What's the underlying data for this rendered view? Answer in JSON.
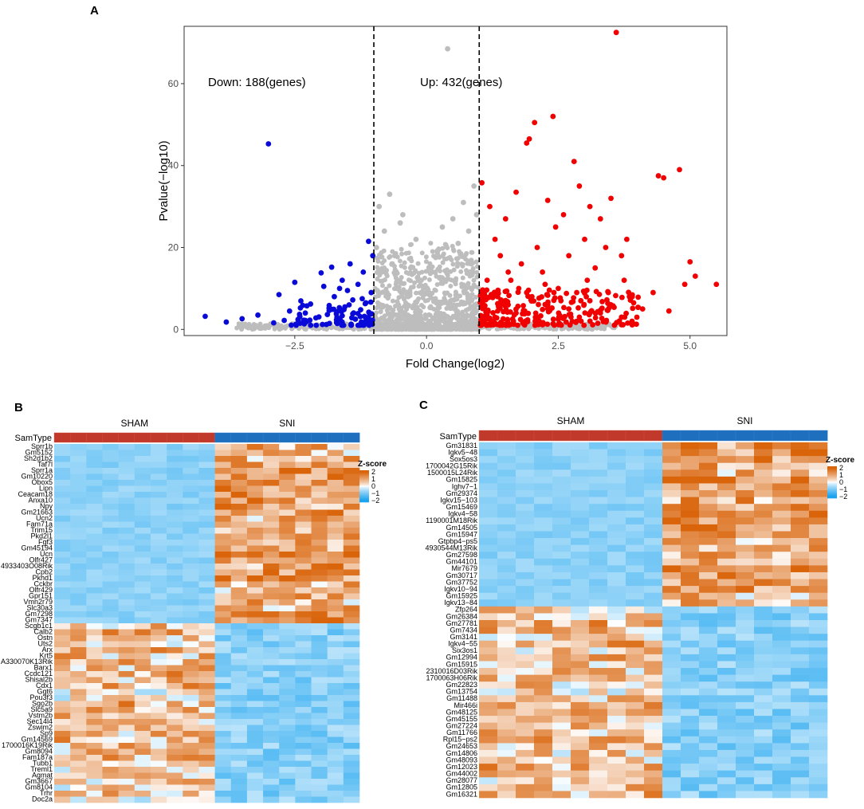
{
  "colors": {
    "up": "#f00000",
    "down": "#0a0ad8",
    "ns": "#bdbdbd",
    "sham": "#c0392b",
    "sni": "#1f6fbf",
    "low": "#1aa3ef",
    "mid": "#ffffff",
    "high": "#d9640a"
  },
  "chart_data": [
    {
      "panel": "A",
      "type": "scatter",
      "title": "",
      "xlabel": "Fold Change(log2)",
      "ylabel": "Pvalue(−log10)",
      "xlim": [
        -4.6,
        5.7
      ],
      "ylim": [
        -1.5,
        74
      ],
      "xticks": [
        -2.5,
        0.0,
        2.5,
        5.0
      ],
      "xtick_labels": [
        "−2.5",
        "0.0",
        "2.5",
        "5.0"
      ],
      "yticks": [
        0,
        20,
        40,
        60
      ],
      "ytick_labels": [
        "0",
        "20",
        "40",
        "60"
      ],
      "thresholds": [
        -1,
        1
      ],
      "annotations": {
        "down": "Down: 188(genes)",
        "up": "Up: 432(genes)"
      },
      "down_points": [
        [
          -4.2,
          3.2
        ],
        [
          -3.8,
          1.8
        ],
        [
          -3.2,
          3.5
        ],
        [
          -3.0,
          45.3
        ],
        [
          -2.8,
          8.5
        ],
        [
          -2.5,
          11.5
        ],
        [
          -2.3,
          4.0
        ],
        [
          -2.2,
          6.2
        ],
        [
          -2.0,
          13.8
        ],
        [
          -1.95,
          10.5
        ],
        [
          -1.8,
          15.2
        ],
        [
          -1.75,
          8.0
        ],
        [
          -1.7,
          3.0
        ],
        [
          -1.6,
          12.0
        ],
        [
          -1.55,
          5.5
        ],
        [
          -1.5,
          9.5
        ],
        [
          -1.45,
          16.0
        ],
        [
          -1.4,
          7.2
        ],
        [
          -1.35,
          2.5
        ],
        [
          -1.3,
          11.0
        ],
        [
          -1.25,
          4.8
        ],
        [
          -1.2,
          14.0
        ],
        [
          -1.15,
          6.5
        ],
        [
          -1.1,
          21.5
        ],
        [
          -1.08,
          3.8
        ],
        [
          -1.05,
          9.0
        ],
        [
          -1.02,
          18.0
        ],
        [
          -2.7,
          2.2
        ],
        [
          -2.4,
          1.5
        ],
        [
          -2.1,
          2.8
        ],
        [
          -1.9,
          1.2
        ],
        [
          -1.6,
          1.8
        ],
        [
          -1.3,
          1.0
        ],
        [
          -1.15,
          2.0
        ],
        [
          -3.5,
          2.6
        ],
        [
          -2.9,
          1.6
        ],
        [
          -1.85,
          5.2
        ],
        [
          -1.65,
          10.0
        ],
        [
          -1.4,
          3.8
        ],
        [
          -1.22,
          7.5
        ]
      ],
      "ns_points": [
        [
          -0.95,
          20
        ],
        [
          -0.9,
          30
        ],
        [
          -0.8,
          24
        ],
        [
          -0.7,
          33
        ],
        [
          -0.6,
          18
        ],
        [
          -0.5,
          26
        ],
        [
          -0.45,
          28
        ],
        [
          -0.3,
          15
        ],
        [
          -0.2,
          22
        ],
        [
          -0.1,
          12
        ],
        [
          0.0,
          10
        ],
        [
          0.1,
          14
        ],
        [
          0.2,
          19
        ],
        [
          0.3,
          25
        ],
        [
          0.4,
          68.5
        ],
        [
          0.5,
          27
        ],
        [
          0.6,
          21
        ],
        [
          0.7,
          31
        ],
        [
          0.8,
          24
        ],
        [
          0.9,
          35
        ],
        [
          0.95,
          28
        ],
        [
          -0.55,
          12
        ],
        [
          0.55,
          12
        ],
        [
          -0.85,
          14
        ],
        [
          0.85,
          16
        ],
        [
          -1.3,
          0.6
        ],
        [
          1.4,
          0.8
        ],
        [
          -2.0,
          0.5
        ],
        [
          2.2,
          0.6
        ],
        [
          -0.75,
          9
        ],
        [
          0.75,
          10
        ],
        [
          -0.35,
          8
        ],
        [
          0.35,
          7
        ]
      ],
      "up_points": [
        [
          1.05,
          35.8
        ],
        [
          1.2,
          30
        ],
        [
          1.3,
          22
        ],
        [
          1.4,
          18
        ],
        [
          1.5,
          27
        ],
        [
          1.6,
          12
        ],
        [
          1.7,
          33.5
        ],
        [
          1.8,
          16
        ],
        [
          1.9,
          45.5
        ],
        [
          1.95,
          46.5
        ],
        [
          2.05,
          50.5
        ],
        [
          2.1,
          20
        ],
        [
          2.2,
          14
        ],
        [
          2.3,
          31.5
        ],
        [
          2.4,
          52
        ],
        [
          2.45,
          25
        ],
        [
          2.5,
          10
        ],
        [
          2.6,
          28
        ],
        [
          2.7,
          18
        ],
        [
          2.8,
          41
        ],
        [
          2.9,
          35
        ],
        [
          3.0,
          22
        ],
        [
          3.1,
          30
        ],
        [
          3.2,
          15
        ],
        [
          3.3,
          27
        ],
        [
          3.4,
          20
        ],
        [
          3.5,
          32
        ],
        [
          3.6,
          72.5
        ],
        [
          3.7,
          18
        ],
        [
          3.75,
          12
        ],
        [
          3.8,
          22
        ],
        [
          3.85,
          8
        ],
        [
          4.1,
          5
        ],
        [
          4.3,
          9
        ],
        [
          4.4,
          37.5
        ],
        [
          4.5,
          37
        ],
        [
          4.6,
          4.5
        ],
        [
          4.8,
          39
        ],
        [
          4.9,
          11
        ],
        [
          5.0,
          16.5
        ],
        [
          5.1,
          13
        ],
        [
          5.5,
          11
        ],
        [
          1.1,
          5
        ],
        [
          1.3,
          3
        ],
        [
          1.5,
          7
        ],
        [
          1.7,
          4
        ],
        [
          1.9,
          9
        ],
        [
          2.1,
          3
        ],
        [
          2.3,
          6
        ],
        [
          2.5,
          2.5
        ],
        [
          2.7,
          5
        ],
        [
          2.9,
          3
        ],
        [
          3.1,
          7
        ],
        [
          3.3,
          4
        ],
        [
          3.5,
          6
        ],
        [
          3.7,
          3
        ],
        [
          1.15,
          12
        ],
        [
          1.35,
          8
        ],
        [
          1.55,
          14
        ],
        [
          1.75,
          10
        ],
        [
          2.0,
          8
        ],
        [
          2.25,
          11
        ],
        [
          2.55,
          7
        ],
        [
          2.85,
          9
        ],
        [
          3.05,
          12
        ],
        [
          3.45,
          9
        ],
        [
          1.25,
          2
        ],
        [
          1.65,
          2
        ],
        [
          2.15,
          1.5
        ],
        [
          2.65,
          1.8
        ],
        [
          3.25,
          1.5
        ],
        [
          3.9,
          2
        ]
      ]
    },
    {
      "panel": "B",
      "type": "heatmap",
      "samtype_label": "SamType",
      "groups": [
        {
          "name": "SHAM",
          "n": 10
        },
        {
          "name": "SNI",
          "n": 9
        }
      ],
      "legend_title": "Z-score",
      "legend_ticks": [
        2,
        1,
        0,
        -1,
        -2
      ],
      "legend_tick_labels": [
        "2",
        "1",
        "0",
        "−1",
        "−2"
      ],
      "up_in_sni": [
        "Sprr1b",
        "Gm5152",
        "Sh2d1b2",
        "Taf7l",
        "Sprr1a",
        "Gm10220",
        "Obox5",
        "Lipn",
        "Ceacam18",
        "Anxa10",
        "Npy",
        "Gm21663",
        "Ucn2",
        "Fam71a",
        "Trim15",
        "Pkd2l1",
        "Fgf3",
        "Gm45194",
        "Ucn",
        "Olfr427",
        "4933403O08Rik",
        "Cpb2",
        "Pkhd1",
        "Cckbr",
        "Olfr429",
        "Gpr151",
        "Vmn2r79",
        "Slc30a3",
        "Gm7298",
        "Gm7347"
      ],
      "down_in_sni": [
        "Scgb1c1",
        "Calb2",
        "Ostn",
        "Uts2",
        "Arx",
        "Krt5",
        "A330070K13Rik",
        "Barx1",
        "Ccdc121",
        "Shisal2b",
        "Cdx1",
        "Ggt6",
        "Pou3f3",
        "Sgo2b",
        "Slc5a9",
        "Vstm2b",
        "Sec14l4",
        "Zswim2",
        "Sp9",
        "Gm14569",
        "1700016K19Rik",
        "Gm8094",
        "Fam187a",
        "Tubb1",
        "Treml1",
        "Agmat",
        "Gm3667",
        "Gm8104",
        "Trhr",
        "Doc2a"
      ]
    },
    {
      "panel": "C",
      "type": "heatmap",
      "samtype_label": "SamType",
      "groups": [
        {
          "name": "SHAM",
          "n": 10
        },
        {
          "name": "SNI",
          "n": 9
        }
      ],
      "legend_title": "Z-score",
      "legend_ticks": [
        2,
        1,
        0,
        -1,
        -2
      ],
      "legend_tick_labels": [
        "2",
        "1",
        "0",
        "−1",
        "−2"
      ],
      "up_in_sni": [
        "Gm31831",
        "Igkv5−48",
        "Sox5os3",
        "1700042G15Rik",
        "1500015L24Rik",
        "Gm15825",
        "Ighv7−1",
        "Gm29374",
        "Igkv15−103",
        "Gm15469",
        "Igkv4−58",
        "1190001M18Rik",
        "Gm14505",
        "Gm15947",
        "Gtpbp4−ps5",
        "4930544M13Rik",
        "Gm27598",
        "Gm44101",
        "Mir7679",
        "Gm30717",
        "Gm37752",
        "Igkv10−94",
        "Gm15925",
        "Igkv13−84"
      ],
      "down_in_sni": [
        "Zfp264",
        "Gm26384",
        "Gm27781",
        "Gm7434",
        "Gm3141",
        "Igkv4−55",
        "Six3os1",
        "Gm12994",
        "Gm15915",
        "2310016D03Rik",
        "1700063H06Rik",
        "Gm22823",
        "Gm13754",
        "Gm11488",
        "Mir466i",
        "Gm48125",
        "Gm45155",
        "Gm27224",
        "Gm11766",
        "Rpl15−ps2",
        "Gm24653",
        "Gm14806",
        "Gm48093",
        "Gm12023",
        "Gm44002",
        "Gm28077",
        "Gm12805",
        "Gm16321"
      ]
    }
  ]
}
